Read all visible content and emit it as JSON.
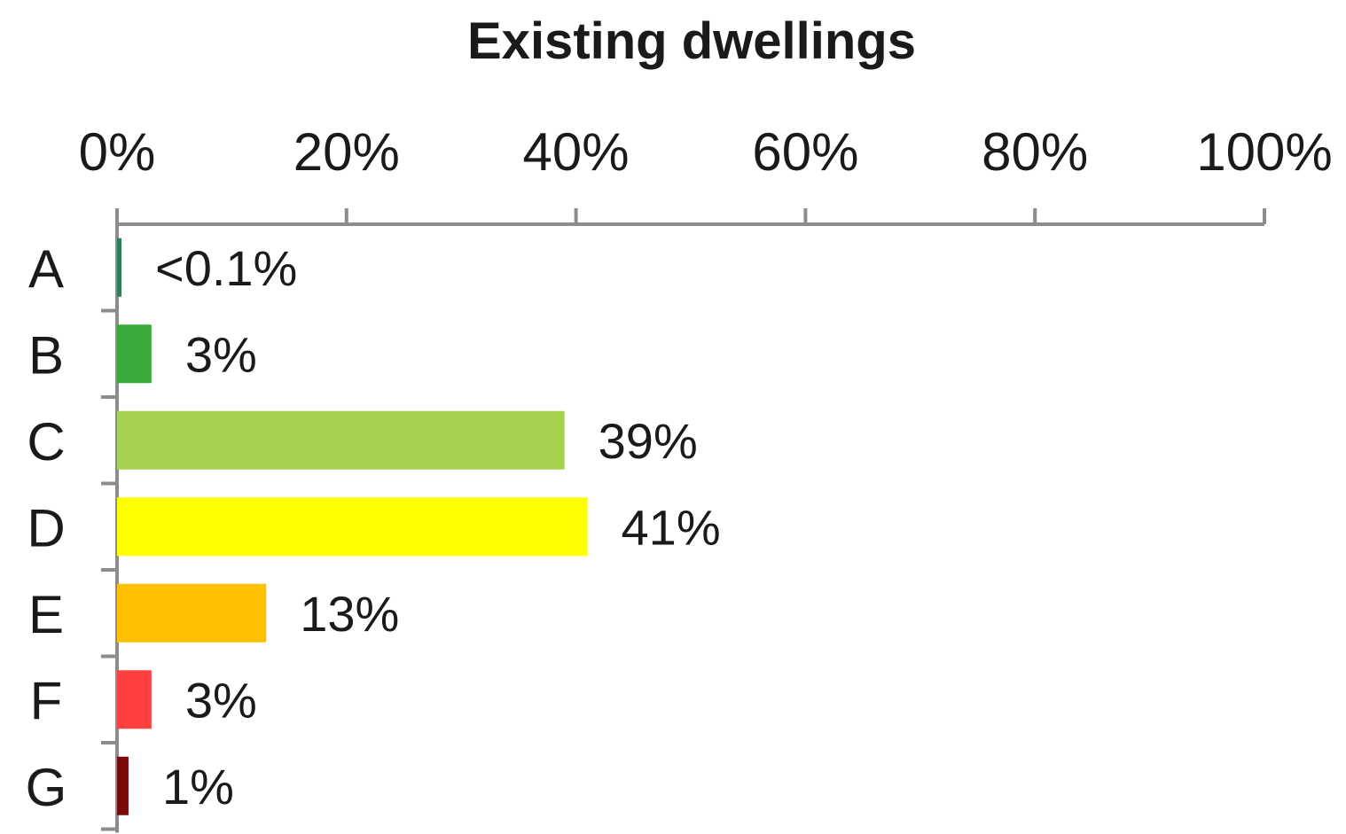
{
  "chart_data": {
    "type": "bar",
    "orientation": "horizontal",
    "title": "Existing dwellings",
    "xlabel": "",
    "ylabel": "",
    "xlim": [
      0,
      100
    ],
    "x_ticks": [
      "0%",
      "20%",
      "40%",
      "60%",
      "80%",
      "100%"
    ],
    "x_axis_position": "top",
    "grid": false,
    "categories": [
      "A",
      "B",
      "C",
      "D",
      "E",
      "F",
      "G"
    ],
    "values": [
      0.05,
      3,
      39,
      41,
      13,
      3,
      1
    ],
    "value_labels": [
      "<0.1%",
      "3%",
      "39%",
      "41%",
      "13%",
      "3%",
      "1%"
    ],
    "colors": [
      "#2e7d5b",
      "#3aaa3a",
      "#a8d14f",
      "#ffff00",
      "#ffc000",
      "#ff4040",
      "#7a0a0a"
    ]
  }
}
